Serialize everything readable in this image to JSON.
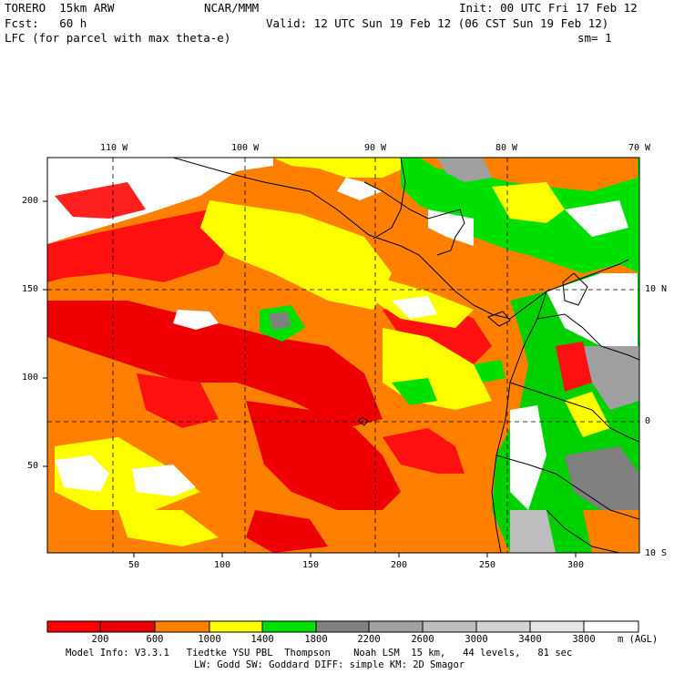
{
  "header": {
    "model": "TORERO  15km ARW",
    "center": "NCAR/MMM",
    "init": "Init: 00 UTC Fri 17 Feb 12",
    "fcst": "Fcst:   60 h",
    "valid": "Valid: 12 UTC Sun 19 Feb 12 (06 CST Sun 19 Feb 12)",
    "field": "LFC (for parcel with max theta-e)",
    "smooth": "sm= 1"
  },
  "map": {
    "lon_labels": [
      "110 W",
      "100 W",
      "90 W",
      "80 W",
      "70 W"
    ],
    "lat_labels": [
      "10 N",
      "0",
      "10 S"
    ],
    "x_grid_labels": [
      "50",
      "100",
      "150",
      "200",
      "250",
      "300"
    ],
    "y_grid_labels": [
      "200",
      "150",
      "100",
      "50"
    ]
  },
  "colorbar": {
    "labels": [
      "200",
      "600",
      "1000",
      "1400",
      "1800",
      "2200",
      "2600",
      "3000",
      "3400",
      "3800"
    ],
    "unit": "m (AGL)",
    "colors": [
      "#ff0000",
      "#e80000",
      "#ff8000",
      "#ffff00",
      "#00e000",
      "#808080",
      "#a0a0a0",
      "#bebebe",
      "#d2d2d2",
      "#e6e6e6",
      "#ffffff"
    ]
  },
  "footer": {
    "line1": "Model Info: V3.3.1   Tiedtke YSU PBL  Thompson    Noah LSM  15 km,   44 levels,   81 sec",
    "line2": "LW: Godd SW: Goddard DIFF: simple KM: 2D Smagor"
  }
}
